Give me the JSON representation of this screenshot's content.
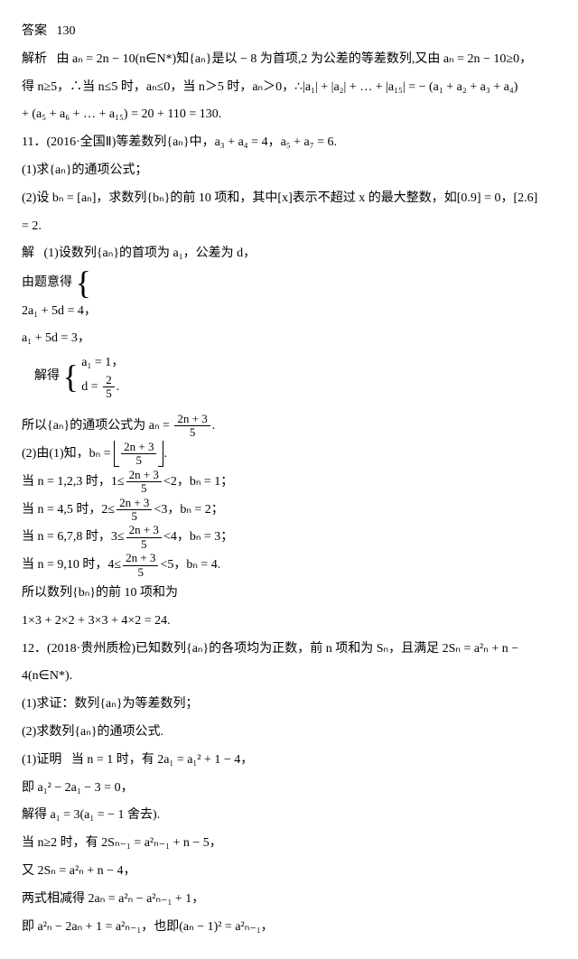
{
  "answer_label": "答案",
  "answer_value": "130",
  "analysis_label": "解析",
  "p1": "由 aₙ = 2n − 10(n∈N*)知{aₙ}是以 − 8 为首项,2 为公差的等差数列,又由 aₙ = 2n − 10≥0，",
  "p2": "得 n≥5，∴当 n≤5 时，aₙ≤0，当 n＞5 时，aₙ＞0，∴|a₁| + |a₂| + … + |a₁₅| = − (a₁ + a₂ + a₃ + a₄)",
  "p3": " + (a₅ + a₆ + … + a₁₅) = 20 + 110 = 130.",
  "q11": "11．(2016·全国Ⅱ)等差数列{aₙ}中，a₃ + a₄ = 4，a₅ + a₇ = 6.",
  "q11_1": "(1)求{aₙ}的通项公式；",
  "q11_2a": "(2)设 bₙ = [aₙ]，求数列{bₙ}的前 10 项和，其中[x]表示不超过 x 的最大整数，如[0.9] = 0，[2.6]",
  "q11_2b": " = 2.",
  "sol_label": "解",
  "sol1_1": "(1)设数列{aₙ}的首项为 a₁，公差为 d，",
  "sys_pre": "由题意得",
  "sys1_l1": "2a₁ + 5d = 4，",
  "sys1_l2": "a₁ + 5d = 3，",
  "sys_mid": "解得",
  "sys2_l1": "a₁ = 1，",
  "sys2_l2_pre": "d = ",
  "sys2_frac_num": "2",
  "sys2_frac_den": "5",
  "sys2_l2_post": ".",
  "sol1_3_pre": "所以{aₙ}的通项公式为 aₙ = ",
  "frac_2n3_num": "2n + 3",
  "frac_2n3_den": "5",
  "sol1_3_post": ".",
  "sol2_1_pre": "(2)由(1)知，bₙ = ",
  "sol2_1_post": ".",
  "c1_pre": "当 n = 1,2,3 时，1≤",
  "c1_post": "<2，bₙ = 1；",
  "c2_pre": "当 n = 4,5 时，2≤",
  "c2_post": "<3，bₙ = 2；",
  "c3_pre": "当 n = 6,7,8 时，3≤",
  "c3_post": "<4，bₙ = 3；",
  "c4_pre": "当 n = 9,10 时，4≤",
  "c4_post": "<5，bₙ = 4.",
  "sum_text": "所以数列{bₙ}的前 10 项和为",
  "sum_calc": "1×3 + 2×2 + 3×3 + 4×2 = 24.",
  "q12a": "12．(2018·贵州质检)已知数列{aₙ}的各项均为正数，前 n 项和为 Sₙ，且满足 2Sₙ = a²ₙ + n −",
  "q12b": "4(n∈N*).",
  "q12_1": "(1)求证：数列{aₙ}为等差数列；",
  "q12_2": "(2)求数列{aₙ}的通项公式.",
  "proof_label": "(1)证明",
  "proof_1": "当 n = 1 时，有 2a₁ = a₁² + 1 − 4，",
  "proof_2": "即 a₁² − 2a₁ − 3 = 0，",
  "proof_3": "解得 a₁ = 3(a₁ = − 1 舍去).",
  "proof_4": "当 n≥2 时，有 2Sₙ₋₁ = a²ₙ₋₁ + n − 5，",
  "proof_5": "又 2Sₙ = a²ₙ + n − 4，",
  "proof_6": "两式相减得 2aₙ = a²ₙ − a²ₙ₋₁ + 1，",
  "proof_7": "即 a²ₙ − 2aₙ + 1 = a²ₙ₋₁，也即(aₙ − 1)² = a²ₙ₋₁，"
}
